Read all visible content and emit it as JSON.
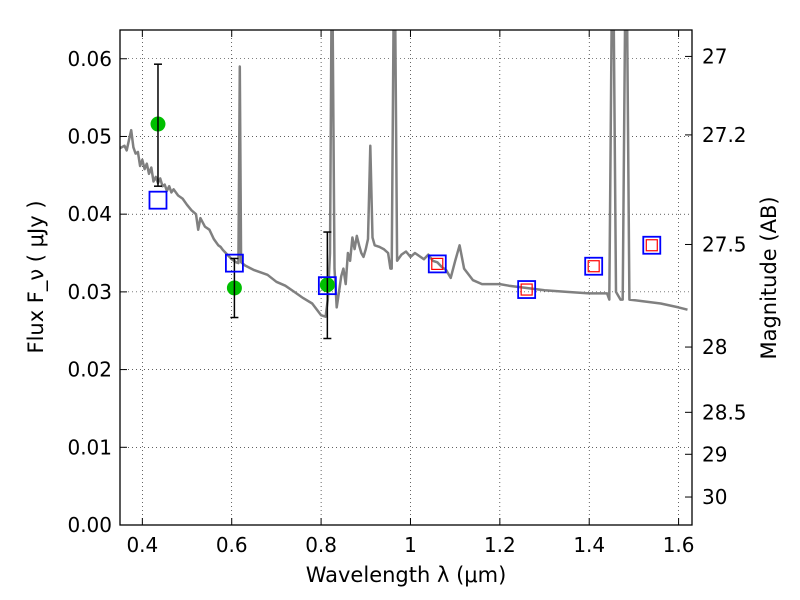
{
  "chart_data": {
    "type": "scatter",
    "xlabel": "Wavelength  λ (μm)",
    "ylabel_left": "Flux  F_ν  ( μJy )",
    "ylabel_right": "Magnitude (AB)",
    "xlim": [
      0.35,
      1.63
    ],
    "ylim": [
      0.0,
      0.0637
    ],
    "grid": true,
    "x_ticks": [
      0.4,
      0.6,
      0.8,
      1.0,
      1.2,
      1.4,
      1.6
    ],
    "x_tick_labels": [
      "0.4",
      "0.6",
      "0.8",
      "1",
      "1.2",
      "1.4",
      "1.6"
    ],
    "y_ticks": [
      0.0,
      0.01,
      0.02,
      0.03,
      0.04,
      0.05,
      0.06
    ],
    "y_tick_labels": [
      "0.00",
      "0.01",
      "0.02",
      "0.03",
      "0.04",
      "0.05",
      "0.06"
    ],
    "right_ticks": [
      {
        "flux": 0.0603,
        "label": "27"
      },
      {
        "flux": 0.0502,
        "label": "27.2"
      },
      {
        "flux": 0.0361,
        "label": "27.5"
      },
      {
        "flux": 0.0229,
        "label": "28"
      },
      {
        "flux": 0.0145,
        "label": "28.5"
      },
      {
        "flux": 0.0091,
        "label": "29"
      },
      {
        "flux": 0.0036,
        "label": "30"
      }
    ],
    "series": [
      {
        "kind": "line",
        "color": "#808080",
        "points": [
          [
            0.35,
            0.0485
          ],
          [
            0.36,
            0.0488
          ],
          [
            0.365,
            0.0482
          ],
          [
            0.37,
            0.0495
          ],
          [
            0.375,
            0.0508
          ],
          [
            0.38,
            0.0486
          ],
          [
            0.385,
            0.0478
          ],
          [
            0.39,
            0.048
          ],
          [
            0.395,
            0.0462
          ],
          [
            0.4,
            0.047
          ],
          [
            0.405,
            0.0458
          ],
          [
            0.41,
            0.0465
          ],
          [
            0.415,
            0.0452
          ],
          [
            0.42,
            0.046
          ],
          [
            0.425,
            0.0442
          ],
          [
            0.43,
            0.0448
          ],
          [
            0.435,
            0.044
          ],
          [
            0.44,
            0.0446
          ],
          [
            0.445,
            0.0436
          ],
          [
            0.45,
            0.0438
          ],
          [
            0.455,
            0.043
          ],
          [
            0.46,
            0.0436
          ],
          [
            0.465,
            0.0428
          ],
          [
            0.47,
            0.0432
          ],
          [
            0.48,
            0.0424
          ],
          [
            0.49,
            0.042
          ],
          [
            0.5,
            0.0412
          ],
          [
            0.51,
            0.0405
          ],
          [
            0.52,
            0.04
          ],
          [
            0.525,
            0.038
          ],
          [
            0.53,
            0.0395
          ],
          [
            0.54,
            0.0384
          ],
          [
            0.55,
            0.038
          ],
          [
            0.56,
            0.0368
          ],
          [
            0.57,
            0.036
          ],
          [
            0.575,
            0.0358
          ],
          [
            0.58,
            0.0354
          ],
          [
            0.59,
            0.0348
          ],
          [
            0.6,
            0.0342
          ],
          [
            0.61,
            0.0338
          ],
          [
            0.615,
            0.0337
          ],
          [
            0.618,
            0.059
          ],
          [
            0.621,
            0.0338
          ],
          [
            0.63,
            0.0334
          ],
          [
            0.65,
            0.0328
          ],
          [
            0.68,
            0.0322
          ],
          [
            0.7,
            0.0313
          ],
          [
            0.72,
            0.0308
          ],
          [
            0.74,
            0.03
          ],
          [
            0.76,
            0.0292
          ],
          [
            0.78,
            0.0285
          ],
          [
            0.8,
            0.027
          ],
          [
            0.81,
            0.0268
          ],
          [
            0.815,
            0.029
          ],
          [
            0.82,
            0.035
          ],
          [
            0.823,
            0.064
          ],
          [
            0.826,
            0.064
          ],
          [
            0.83,
            0.033
          ],
          [
            0.835,
            0.028
          ],
          [
            0.84,
            0.03
          ],
          [
            0.845,
            0.032
          ],
          [
            0.85,
            0.033
          ],
          [
            0.855,
            0.031
          ],
          [
            0.86,
            0.035
          ],
          [
            0.865,
            0.034
          ],
          [
            0.87,
            0.037
          ],
          [
            0.875,
            0.0355
          ],
          [
            0.88,
            0.0372
          ],
          [
            0.885,
            0.036
          ],
          [
            0.89,
            0.035
          ],
          [
            0.895,
            0.0345
          ],
          [
            0.9,
            0.0355
          ],
          [
            0.905,
            0.0368
          ],
          [
            0.91,
            0.0488
          ],
          [
            0.915,
            0.037
          ],
          [
            0.92,
            0.036
          ],
          [
            0.93,
            0.0358
          ],
          [
            0.94,
            0.0355
          ],
          [
            0.95,
            0.035
          ],
          [
            0.955,
            0.033
          ],
          [
            0.958,
            0.033
          ],
          [
            0.962,
            0.064
          ],
          [
            0.966,
            0.064
          ],
          [
            0.97,
            0.034
          ],
          [
            0.98,
            0.0348
          ],
          [
            0.99,
            0.0352
          ],
          [
            1.0,
            0.0345
          ],
          [
            1.01,
            0.035
          ],
          [
            1.02,
            0.0346
          ],
          [
            1.03,
            0.0342
          ],
          [
            1.04,
            0.0348
          ],
          [
            1.05,
            0.034
          ],
          [
            1.06,
            0.0338
          ],
          [
            1.07,
            0.0332
          ],
          [
            1.08,
            0.0328
          ],
          [
            1.09,
            0.0318
          ],
          [
            1.1,
            0.034
          ],
          [
            1.11,
            0.036
          ],
          [
            1.12,
            0.033
          ],
          [
            1.14,
            0.0315
          ],
          [
            1.16,
            0.031
          ],
          [
            1.2,
            0.031
          ],
          [
            1.22,
            0.0308
          ],
          [
            1.26,
            0.0305
          ],
          [
            1.3,
            0.0302
          ],
          [
            1.35,
            0.03
          ],
          [
            1.4,
            0.0298
          ],
          [
            1.44,
            0.0298
          ],
          [
            1.445,
            0.029
          ],
          [
            1.45,
            0.064
          ],
          [
            1.455,
            0.064
          ],
          [
            1.46,
            0.03
          ],
          [
            1.47,
            0.029
          ],
          [
            1.475,
            0.029
          ],
          [
            1.48,
            0.064
          ],
          [
            1.485,
            0.064
          ],
          [
            1.49,
            0.029
          ],
          [
            1.52,
            0.0288
          ],
          [
            1.56,
            0.0285
          ],
          [
            1.6,
            0.028
          ],
          [
            1.62,
            0.0277
          ]
        ]
      },
      {
        "kind": "points",
        "marker": "circle",
        "color": "#00bf00",
        "points": [
          [
            0.435,
            0.0516
          ],
          [
            0.606,
            0.0305
          ],
          [
            0.814,
            0.0309
          ]
        ]
      },
      {
        "kind": "errorbars",
        "color": "#000000",
        "bars": [
          [
            0.435,
            0.0436,
            0.0593
          ],
          [
            0.606,
            0.0267,
            0.0343
          ],
          [
            0.814,
            0.024,
            0.0377
          ]
        ]
      },
      {
        "kind": "points",
        "marker": "square",
        "color": "#0000ff",
        "points": [
          [
            0.435,
            0.0418
          ],
          [
            0.606,
            0.0337
          ],
          [
            0.814,
            0.0308
          ],
          [
            1.06,
            0.0336
          ],
          [
            1.26,
            0.0303
          ],
          [
            1.41,
            0.0333
          ],
          [
            1.54,
            0.036
          ]
        ]
      },
      {
        "kind": "points",
        "marker": "square",
        "color": "#ff0000",
        "points": [
          [
            1.06,
            0.0336
          ],
          [
            1.26,
            0.0303
          ],
          [
            1.41,
            0.0333
          ],
          [
            1.54,
            0.036
          ]
        ]
      }
    ]
  }
}
